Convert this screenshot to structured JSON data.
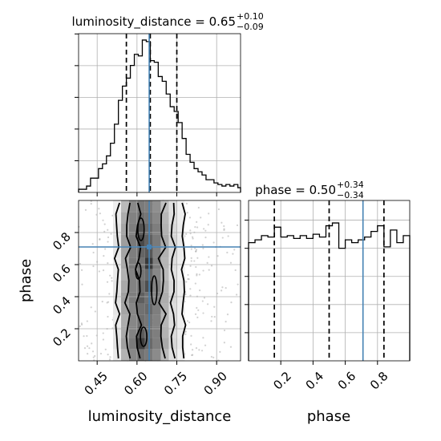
{
  "chart_data": {
    "type": "corner",
    "parameters": [
      {
        "name": "luminosity_distance",
        "title_name": "luminosity_distance = 0.65",
        "title_sup": "+0.10",
        "title_sub": "−0.09",
        "axis_label": "luminosity_distance",
        "range": [
          0.38,
          0.99
        ],
        "ticks": [
          0.45,
          0.6,
          0.75,
          0.9
        ],
        "tick_labels": [
          "0.45",
          "0.60",
          "0.75",
          "0.90"
        ],
        "quantiles": [
          0.56,
          0.65,
          0.75
        ],
        "truth": 0.646,
        "hist_max": 0.96,
        "hist_bins": [
          0.38,
          0.395,
          0.41,
          0.425,
          0.44,
          0.455,
          0.47,
          0.485,
          0.5,
          0.515,
          0.53,
          0.545,
          0.56,
          0.575,
          0.59,
          0.605,
          0.62,
          0.635,
          0.65,
          0.665,
          0.68,
          0.695,
          0.71,
          0.725,
          0.74,
          0.755,
          0.77,
          0.785,
          0.8,
          0.815,
          0.83,
          0.845,
          0.86,
          0.875,
          0.89,
          0.905,
          0.92,
          0.935,
          0.95,
          0.965,
          0.98,
          0.99
        ],
        "hist_values": [
          0.02,
          0.02,
          0.04,
          0.09,
          0.09,
          0.15,
          0.18,
          0.23,
          0.31,
          0.43,
          0.58,
          0.67,
          0.72,
          0.8,
          0.87,
          0.86,
          0.96,
          0.95,
          0.83,
          0.82,
          0.73,
          0.7,
          0.62,
          0.54,
          0.51,
          0.44,
          0.34,
          0.24,
          0.19,
          0.15,
          0.13,
          0.11,
          0.08,
          0.08,
          0.06,
          0.05,
          0.04,
          0.05,
          0.04,
          0.05,
          0.03
        ]
      },
      {
        "name": "phase",
        "title_name": "phase = 0.50",
        "title_sup": "+0.34",
        "title_sub": "−0.34",
        "axis_label": "phase",
        "range": [
          0.0,
          1.0
        ],
        "ticks": [
          0.2,
          0.4,
          0.6,
          0.8
        ],
        "tick_labels": [
          "0.2",
          "0.4",
          "0.6",
          "0.8"
        ],
        "quantiles": [
          0.16,
          0.5,
          0.84
        ],
        "truth": 0.71,
        "hist_max": 1.0,
        "hist_values": [
          0.84,
          0.86,
          0.89,
          0.88,
          0.95,
          0.88,
          0.89,
          0.87,
          0.89,
          0.87,
          0.9,
          0.88,
          0.96,
          0.98,
          0.8,
          0.86,
          0.84,
          0.86,
          0.88,
          0.92,
          0.96,
          0.81,
          0.93,
          0.84,
          0.89
        ]
      }
    ],
    "density_2d": {
      "x_param": "luminosity_distance",
      "y_param": "phase",
      "x_centers": [
        0.525,
        0.555,
        0.585,
        0.615,
        0.645,
        0.675,
        0.705,
        0.735,
        0.765
      ],
      "y_rows_top_to_bottom": [
        [
          0.08,
          0.32,
          0.55,
          0.62,
          0.6,
          0.52,
          0.3,
          0.15,
          0.07
        ],
        [
          0.1,
          0.38,
          0.58,
          0.68,
          0.64,
          0.56,
          0.34,
          0.16,
          0.08
        ],
        [
          0.12,
          0.42,
          0.6,
          0.8,
          0.7,
          0.6,
          0.36,
          0.18,
          0.09
        ],
        [
          0.14,
          0.45,
          0.62,
          0.85,
          0.74,
          0.62,
          0.4,
          0.2,
          0.1
        ],
        [
          0.12,
          0.42,
          0.6,
          0.72,
          0.78,
          0.58,
          0.36,
          0.17,
          0.09
        ],
        [
          0.1,
          0.4,
          0.62,
          0.66,
          0.92,
          0.6,
          0.34,
          0.16,
          0.08
        ],
        [
          0.1,
          0.36,
          0.58,
          0.64,
          0.7,
          0.56,
          0.32,
          0.15,
          0.07
        ],
        [
          0.12,
          0.4,
          0.58,
          0.68,
          0.82,
          0.58,
          0.36,
          0.17,
          0.09
        ],
        [
          0.14,
          0.44,
          0.6,
          0.75,
          0.66,
          0.56,
          0.38,
          0.18,
          0.09
        ],
        [
          0.12,
          0.42,
          0.56,
          0.66,
          0.7,
          0.6,
          0.36,
          0.16,
          0.08
        ],
        [
          0.1,
          0.38,
          0.56,
          0.68,
          0.64,
          0.58,
          0.34,
          0.16,
          0.08
        ],
        [
          0.12,
          0.4,
          0.58,
          0.76,
          0.66,
          0.6,
          0.36,
          0.17,
          0.09
        ],
        [
          0.14,
          0.44,
          0.62,
          0.9,
          0.7,
          0.6,
          0.4,
          0.19,
          0.1
        ],
        [
          0.1,
          0.36,
          0.56,
          0.66,
          0.62,
          0.54,
          0.32,
          0.15,
          0.07
        ]
      ]
    },
    "colors": {
      "truth": "#4682b4",
      "line": "#000000",
      "grid": "#b0b0b0"
    },
    "grid": true
  }
}
